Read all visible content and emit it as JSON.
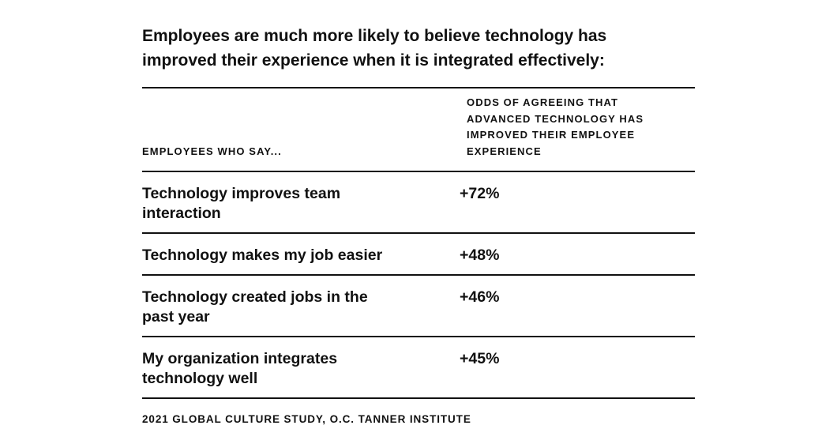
{
  "title": "Employees are much more likely to believe technology has improved their experience when it is integrated effectively:",
  "table": {
    "col_left_header": "EMPLOYEES WHO SAY...",
    "col_right_header": "ODDS OF AGREEING THAT ADVANCED TECHNOLOGY HAS IMPROVED THEIR EMPLOYEE EXPERIENCE",
    "rows": [
      {
        "label": "Technology improves team interaction",
        "value": "+72%"
      },
      {
        "label": "Technology makes my job easier",
        "value": "+48%"
      },
      {
        "label": "Technology created jobs in the past year",
        "value": "+46%"
      },
      {
        "label": "My organization integrates technology well",
        "value": "+45%"
      }
    ]
  },
  "source": "2021 GLOBAL CULTURE STUDY, O.C. TANNER INSTITUTE"
}
